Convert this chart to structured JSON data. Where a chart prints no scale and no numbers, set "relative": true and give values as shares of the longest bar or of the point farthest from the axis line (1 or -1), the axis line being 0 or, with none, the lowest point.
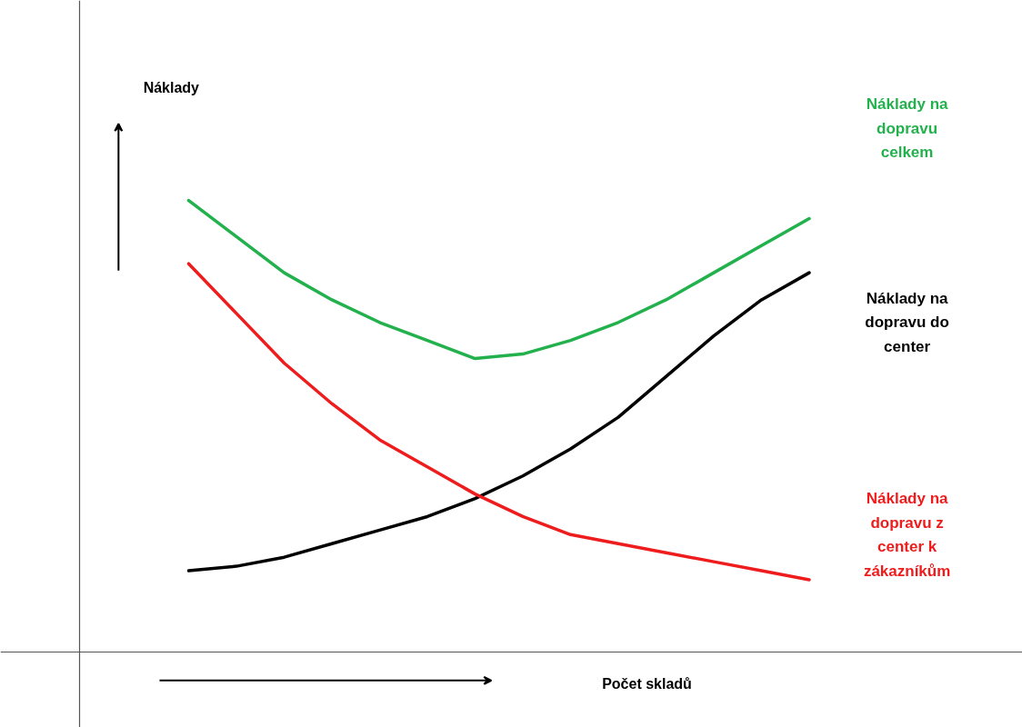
{
  "chart_data": {
    "type": "line",
    "relative": true,
    "xlabel": "Počet skladů",
    "annotations": [
      "Náklady"
    ],
    "categories": [
      null,
      null,
      null,
      null,
      null,
      null,
      null,
      null,
      null,
      null,
      null,
      null,
      null,
      null
    ],
    "series": [
      {
        "name": "Náklady na dopravu celkem",
        "color": "#22b14c",
        "values": [
          1.0,
          0.92,
          0.84,
          0.78,
          0.73,
          0.69,
          0.65,
          0.66,
          0.69,
          0.73,
          0.78,
          0.84,
          0.9,
          0.96
        ]
      },
      {
        "name": "Náklady na dopravu do center",
        "color": "#000000",
        "values": [
          0.18,
          0.19,
          0.21,
          0.24,
          0.27,
          0.3,
          0.34,
          0.39,
          0.45,
          0.52,
          0.61,
          0.7,
          0.78,
          0.84
        ]
      },
      {
        "name": "Náklady na dopravu z center k zákazníkům",
        "color": "#ee1c1c",
        "values": [
          0.86,
          0.75,
          0.64,
          0.55,
          0.47,
          0.41,
          0.35,
          0.3,
          0.26,
          0.24,
          0.22,
          0.2,
          0.18,
          0.16
        ]
      }
    ]
  }
}
